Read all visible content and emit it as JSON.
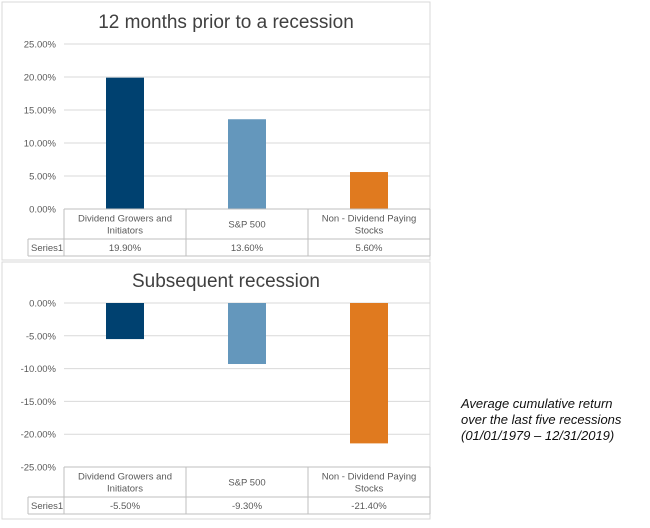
{
  "chart_data": [
    {
      "type": "bar",
      "title": "12 months prior to a recession",
      "categories": [
        "Dividend Growers and Initiators",
        "S&P 500",
        "Non - Dividend Paying Stocks"
      ],
      "category_lines": [
        [
          "Dividend Growers and",
          "Initiators"
        ],
        [
          "S&P 500"
        ],
        [
          "Non - Dividend Paying",
          "Stocks"
        ]
      ],
      "series": [
        {
          "name": "Series1",
          "values": [
            19.9,
            13.6,
            5.6
          ]
        }
      ],
      "value_labels": [
        "19.90%",
        "13.60%",
        "5.60%"
      ],
      "ylim": [
        0,
        25
      ],
      "yticks": [
        0,
        5,
        10,
        15,
        20,
        25
      ],
      "ytick_labels": [
        "0.00%",
        "5.00%",
        "10.00%",
        "15.00%",
        "20.00%",
        "25.00%"
      ],
      "colors": [
        "#004170",
        "#6497bc",
        "#e07a1f"
      ],
      "grid": true,
      "data_table": true
    },
    {
      "type": "bar",
      "title": "Subsequent recession",
      "categories": [
        "Dividend Growers and Initiators",
        "S&P 500",
        "Non - Dividend Paying Stocks"
      ],
      "category_lines": [
        [
          "Dividend Growers and",
          "Initiators"
        ],
        [
          "S&P 500"
        ],
        [
          "Non - Dividend Paying",
          "Stocks"
        ]
      ],
      "series": [
        {
          "name": "Series1",
          "values": [
            -5.5,
            -9.3,
            -21.4
          ]
        }
      ],
      "value_labels": [
        "-5.50%",
        "-9.30%",
        "-21.40%"
      ],
      "ylim": [
        -25,
        0
      ],
      "yticks": [
        0,
        -5,
        -10,
        -15,
        -20,
        -25
      ],
      "ytick_labels": [
        "0.00%",
        "-5.00%",
        "-10.00%",
        "-15.00%",
        "-20.00%",
        "-25.00%"
      ],
      "colors": [
        "#004170",
        "#6497bc",
        "#e07a1f"
      ],
      "grid": true,
      "data_table": true
    }
  ],
  "side_note": {
    "line1": "Average cumulative return",
    "line2": "over the last five recessions",
    "line3": "(01/01/1979 – 12/31/2019)"
  }
}
